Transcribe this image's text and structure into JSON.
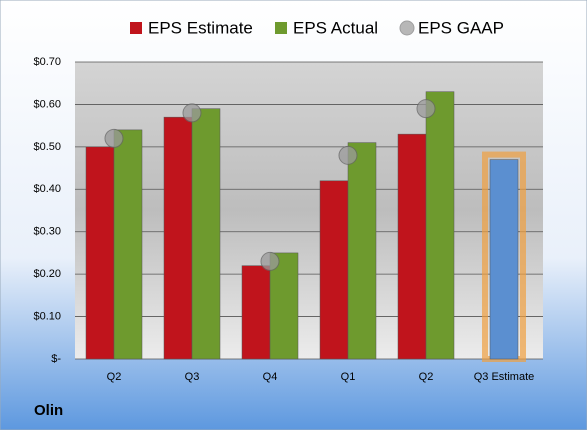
{
  "chart_data": {
    "type": "bar",
    "title": "Olin",
    "categories": [
      "Q2",
      "Q3",
      "Q4",
      "Q1",
      "Q2",
      "Q3 Estimate"
    ],
    "series": [
      {
        "name": "EPS Estimate",
        "color": "#c0141c",
        "values": [
          0.5,
          0.57,
          0.22,
          0.42,
          0.53,
          0.47
        ],
        "colors": [
          "#c0141c",
          "#c0141c",
          "#c0141c",
          "#c0141c",
          "#c0141c",
          "#5b8fd0"
        ]
      },
      {
        "name": "EPS Actual",
        "color": "#6e9a2e",
        "values": [
          0.54,
          0.59,
          0.25,
          0.51,
          0.63,
          null
        ]
      },
      {
        "name": "EPS GAAP",
        "color": "#9a9a9a",
        "values": [
          0.52,
          0.58,
          0.23,
          0.48,
          0.59,
          null
        ],
        "marker": "circle"
      }
    ],
    "ylim": [
      0,
      0.7
    ],
    "yticks": [
      {
        "value": 0,
        "label": "$-"
      },
      {
        "value": 0.1,
        "label": "$0.10"
      },
      {
        "value": 0.2,
        "label": "$0.20"
      },
      {
        "value": 0.3,
        "label": "$0.30"
      },
      {
        "value": 0.4,
        "label": "$0.40"
      },
      {
        "value": 0.5,
        "label": "$0.50"
      },
      {
        "value": 0.6,
        "label": "$0.60"
      },
      {
        "value": 0.7,
        "label": "$0.70"
      }
    ],
    "grid": true,
    "legend": "top"
  }
}
